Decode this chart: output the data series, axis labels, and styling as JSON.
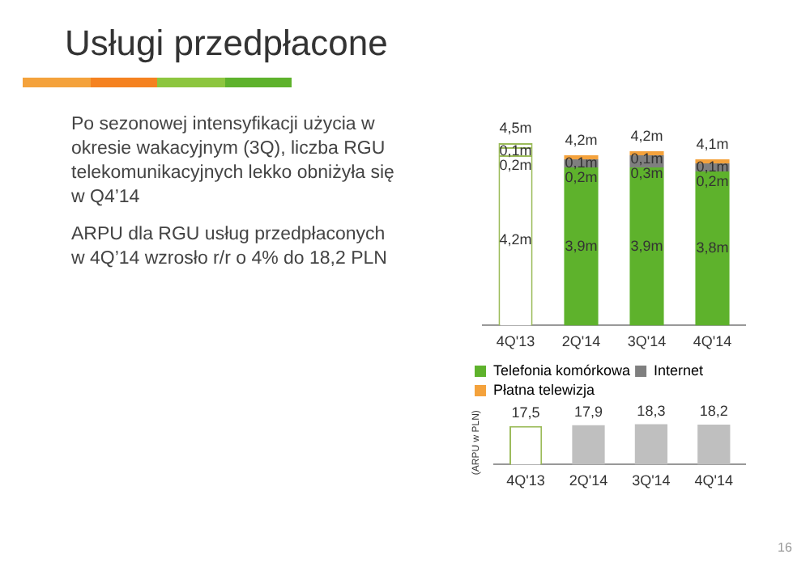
{
  "chart_data": [
    {
      "type": "bar",
      "title": "Usługi przedpłacone",
      "stacked": true,
      "categories": [
        "4Q'13",
        "2Q'14",
        "3Q'14",
        "4Q'14"
      ],
      "legend": "bottom",
      "annotations": [
        "Po sezonowej intensyfikacji użycia w okresie wakacyjnym (3Q), liczba RGU telekomunikacyjnych lekko obniżyła się w Q4’14",
        "ARPU dla RGU usług przedpłaconych w 4Q’14 wzrosło r/r o 4% do 18,2 PLN",
        "16"
      ],
      "series": [
        {
          "name": "Telefonia komórkowa",
          "color": "#5eb22c",
          "colors": [
            "#ffffff",
            "#5eb22c",
            "#5eb22c",
            "#5eb22c"
          ],
          "values": [
            4.2,
            3.9,
            3.9,
            3.8
          ],
          "value_labels": [
            "4,2m",
            "3,9m",
            "3,9m",
            "3,8m"
          ]
        },
        {
          "name": "Internet",
          "color": "#7f7f7f",
          "colors": [
            "#ffffff",
            "#7f7f7f",
            "#7f7f7f",
            "#7f7f7f"
          ],
          "values": [
            0.2,
            0.2,
            0.3,
            0.2
          ],
          "value_labels": [
            "0,2m",
            "0,2m",
            "0,3m",
            "0,2m"
          ]
        },
        {
          "name": "Płatna telewizja",
          "color": "#f4a23c",
          "colors": [
            "#ffffff",
            "#f4a23c",
            "#f4a23c",
            "#f4a23c"
          ],
          "values": [
            0.1,
            0.1,
            0.1,
            0.1
          ],
          "value_labels": [
            "0,1m",
            "0,1m",
            "0,1m",
            "0,1m"
          ]
        }
      ],
      "totals": [
        "4,5m",
        "4,2m",
        "4,2m",
        "4,1m"
      ],
      "relative": false
    },
    {
      "type": "bar",
      "categories": [
        "4Q'13",
        "2Q'14",
        "3Q'14",
        "4Q'14"
      ],
      "ylabel": "(ARPU w PLN)",
      "values": [
        17.5,
        17.9,
        18.3,
        18.2
      ],
      "colors": [
        "#ffffff",
        "#bfbfbf",
        "#bfbfbf",
        "#bfbfbf"
      ],
      "value_labels": [
        "17,5",
        "17,9",
        "18,3",
        "18,2"
      ]
    }
  ]
}
